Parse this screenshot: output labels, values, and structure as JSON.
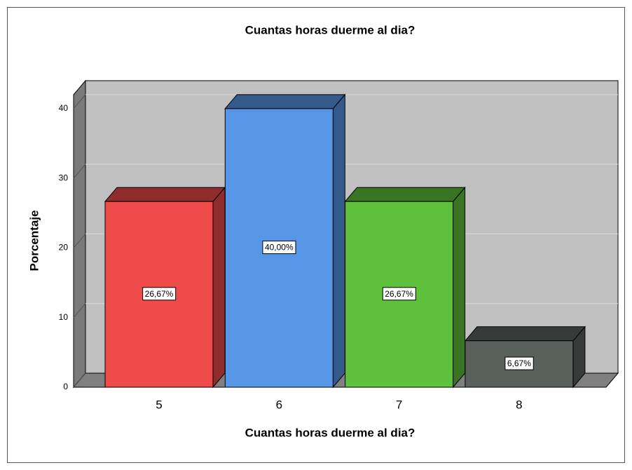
{
  "chart_data": {
    "type": "bar",
    "title": "Cuantas horas duerme al dia?",
    "x_label": "Cuantas horas duerme al dia?",
    "y_label": "Porcentaje",
    "categories": [
      "5",
      "6",
      "7",
      "8"
    ],
    "values": [
      26.67,
      40,
      26.67,
      6.67
    ],
    "value_labels": [
      "26,67%",
      "40,00%",
      "26,67%",
      "6,67%"
    ],
    "colors": [
      "#ef4b4b",
      "#5596e6",
      "#5ec13c",
      "#5a615d"
    ],
    "ylim": [
      0,
      42
    ],
    "yticks": [
      0,
      10,
      20,
      30,
      40
    ],
    "grid": true
  }
}
